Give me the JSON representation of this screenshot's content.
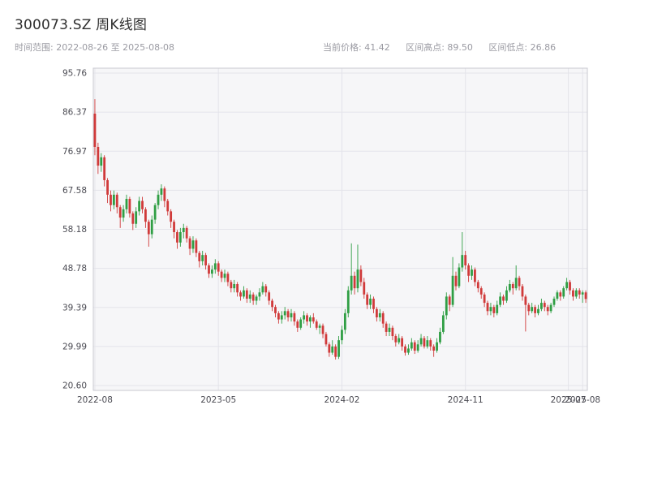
{
  "header": {
    "title": "300073.SZ 周K线图"
  },
  "subheader": {
    "range_label": "时间范围: 2022-08-26 至 2025-08-08",
    "stats": [
      "当前价格: 41.42",
      "区间高点: 89.50",
      "区间低点: 26.86"
    ]
  },
  "chart_data": {
    "type": "candlestick",
    "title": "300073.SZ 周K线图",
    "frequency": "weekly",
    "date_start": "2022-08-26",
    "date_end": "2025-08-08",
    "current_price": 41.42,
    "range_high": 89.5,
    "range_low": 26.86,
    "xlabel": "",
    "ylabel": "",
    "grid": true,
    "ylim": [
      20.6,
      95.76
    ],
    "y_ticks": [
      95.76,
      86.37,
      76.97,
      67.58,
      58.18,
      48.78,
      39.39,
      29.99,
      20.6
    ],
    "x_ticks": [
      {
        "label": "2022-08",
        "week": 0
      },
      {
        "label": "2023-05",
        "week": 39
      },
      {
        "label": "2024-02",
        "week": 78
      },
      {
        "label": "2024-11",
        "week": 117
      },
      {
        "label": "2025-07",
        "week": 149.5
      },
      {
        "label": "2025-08",
        "week": 154
      }
    ],
    "colors": {
      "up": "#2f9e44",
      "down": "#d03a3a",
      "plot_bg": "#f6f6f8",
      "grid": "#e4e4ea",
      "border": "#c9c9d0",
      "tick_text": "#4a4a52"
    },
    "candles": [
      [
        86.0,
        89.5,
        76.0,
        78.0
      ],
      [
        78.0,
        79.0,
        71.5,
        73.5
      ],
      [
        73.5,
        76.5,
        72.0,
        75.5
      ],
      [
        75.5,
        76.0,
        68.5,
        70.0
      ],
      [
        70.0,
        70.5,
        64.5,
        66.5
      ],
      [
        66.5,
        67.5,
        62.5,
        64.0
      ],
      [
        64.0,
        67.5,
        63.0,
        66.5
      ],
      [
        66.5,
        67.0,
        62.0,
        63.5
      ],
      [
        63.5,
        64.0,
        58.5,
        61.0
      ],
      [
        61.0,
        64.0,
        60.0,
        63.0
      ],
      [
        63.0,
        66.5,
        62.0,
        65.5
      ],
      [
        65.5,
        66.0,
        61.0,
        62.0
      ],
      [
        62.0,
        62.5,
        58.0,
        59.5
      ],
      [
        59.5,
        63.5,
        58.5,
        62.5
      ],
      [
        62.5,
        66.0,
        61.5,
        65.0
      ],
      [
        65.0,
        66.0,
        62.0,
        63.0
      ],
      [
        63.0,
        63.5,
        58.5,
        60.0
      ],
      [
        60.0,
        60.5,
        54.0,
        57.0
      ],
      [
        57.0,
        61.5,
        56.0,
        60.5
      ],
      [
        60.5,
        64.5,
        59.5,
        64.0
      ],
      [
        64.0,
        67.5,
        63.0,
        66.5
      ],
      [
        66.5,
        69.0,
        65.0,
        68.0
      ],
      [
        68.0,
        68.5,
        63.5,
        65.0
      ],
      [
        65.0,
        65.5,
        61.5,
        62.5
      ],
      [
        62.5,
        63.0,
        58.5,
        60.0
      ],
      [
        60.0,
        60.5,
        56.0,
        57.5
      ],
      [
        57.5,
        58.0,
        53.5,
        55.0
      ],
      [
        55.0,
        58.5,
        54.0,
        57.5
      ],
      [
        57.5,
        59.5,
        56.0,
        58.5
      ],
      [
        58.5,
        59.0,
        55.0,
        56.0
      ],
      [
        56.0,
        56.5,
        52.0,
        53.5
      ],
      [
        53.5,
        56.5,
        52.5,
        55.5
      ],
      [
        55.5,
        56.0,
        51.5,
        52.5
      ],
      [
        52.5,
        53.0,
        49.0,
        50.5
      ],
      [
        50.5,
        53.0,
        49.5,
        52.0
      ],
      [
        52.0,
        52.5,
        48.5,
        49.5
      ],
      [
        49.5,
        50.0,
        46.5,
        47.5
      ],
      [
        47.5,
        49.5,
        46.5,
        48.5
      ],
      [
        48.5,
        51.0,
        47.5,
        50.0
      ],
      [
        50.0,
        50.5,
        47.0,
        48.0
      ],
      [
        48.0,
        48.5,
        45.5,
        46.5
      ],
      [
        46.5,
        48.5,
        45.5,
        47.5
      ],
      [
        47.5,
        48.0,
        44.5,
        45.5
      ],
      [
        45.5,
        46.0,
        43.0,
        44.0
      ],
      [
        44.0,
        46.0,
        43.0,
        45.0
      ],
      [
        45.0,
        45.5,
        42.0,
        43.0
      ],
      [
        43.0,
        43.5,
        41.0,
        42.0
      ],
      [
        42.0,
        44.5,
        41.5,
        43.5
      ],
      [
        43.5,
        44.0,
        40.5,
        41.5
      ],
      [
        41.5,
        43.5,
        40.5,
        42.5
      ],
      [
        42.5,
        43.0,
        40.0,
        41.0
      ],
      [
        41.0,
        42.5,
        40.0,
        42.0
      ],
      [
        42.0,
        44.0,
        41.0,
        43.0
      ],
      [
        43.0,
        45.5,
        42.5,
        44.5
      ],
      [
        44.5,
        45.0,
        42.0,
        43.0
      ],
      [
        43.0,
        43.5,
        40.0,
        41.0
      ],
      [
        41.0,
        41.5,
        38.5,
        39.5
      ],
      [
        39.5,
        40.0,
        37.0,
        38.0
      ],
      [
        38.0,
        38.5,
        35.5,
        36.5
      ],
      [
        36.5,
        38.5,
        35.5,
        37.5
      ],
      [
        37.5,
        39.5,
        36.5,
        38.5
      ],
      [
        38.5,
        39.0,
        36.0,
        37.0
      ],
      [
        37.0,
        39.0,
        36.0,
        38.0
      ],
      [
        38.0,
        38.5,
        35.0,
        36.0
      ],
      [
        36.0,
        36.5,
        33.5,
        34.5
      ],
      [
        34.5,
        37.0,
        34.0,
        36.5
      ],
      [
        36.5,
        38.5,
        35.5,
        37.5
      ],
      [
        37.5,
        38.0,
        35.0,
        36.0
      ],
      [
        36.0,
        37.5,
        34.5,
        37.0
      ],
      [
        37.0,
        38.0,
        35.5,
        36.0
      ],
      [
        36.0,
        36.5,
        34.0,
        34.5
      ],
      [
        34.5,
        35.5,
        33.0,
        35.0
      ],
      [
        35.0,
        35.5,
        32.0,
        33.0
      ],
      [
        33.0,
        33.5,
        30.0,
        30.5
      ],
      [
        30.5,
        31.0,
        27.5,
        28.5
      ],
      [
        28.5,
        31.5,
        28.0,
        30.0
      ],
      [
        30.0,
        30.5,
        26.86,
        27.5
      ],
      [
        27.5,
        32.5,
        27.0,
        31.5
      ],
      [
        31.5,
        35.0,
        30.5,
        34.0
      ],
      [
        34.0,
        39.0,
        33.0,
        38.0
      ],
      [
        38.0,
        44.5,
        37.0,
        43.5
      ],
      [
        43.5,
        54.8,
        42.5,
        47.0
      ],
      [
        47.0,
        48.0,
        42.5,
        44.0
      ],
      [
        44.0,
        54.5,
        43.0,
        48.5
      ],
      [
        48.5,
        49.5,
        44.5,
        45.5
      ],
      [
        45.5,
        46.5,
        41.5,
        42.5
      ],
      [
        42.5,
        43.0,
        39.0,
        40.0
      ],
      [
        40.0,
        42.5,
        39.0,
        41.5
      ],
      [
        41.5,
        42.0,
        38.0,
        39.0
      ],
      [
        39.0,
        39.5,
        36.0,
        37.0
      ],
      [
        37.0,
        39.0,
        36.0,
        38.0
      ],
      [
        38.0,
        38.5,
        34.5,
        35.5
      ],
      [
        35.5,
        36.0,
        32.5,
        33.5
      ],
      [
        33.5,
        35.5,
        32.5,
        34.5
      ],
      [
        34.5,
        35.0,
        31.5,
        32.5
      ],
      [
        32.5,
        33.0,
        30.0,
        31.0
      ],
      [
        31.0,
        33.0,
        30.5,
        32.0
      ],
      [
        32.0,
        32.5,
        29.0,
        30.0
      ],
      [
        30.0,
        30.5,
        27.8,
        28.5
      ],
      [
        28.5,
        30.5,
        28.0,
        29.5
      ],
      [
        29.5,
        32.0,
        29.0,
        31.0
      ],
      [
        31.0,
        31.5,
        28.2,
        29.0
      ],
      [
        29.0,
        31.5,
        28.5,
        30.5
      ],
      [
        30.5,
        33.0,
        30.0,
        32.0
      ],
      [
        32.0,
        32.5,
        29.5,
        30.0
      ],
      [
        30.0,
        32.5,
        29.5,
        31.5
      ],
      [
        31.5,
        32.0,
        29.0,
        30.0
      ],
      [
        30.0,
        30.5,
        27.5,
        29.0
      ],
      [
        29.0,
        32.0,
        28.5,
        31.0
      ],
      [
        31.0,
        34.5,
        30.5,
        33.5
      ],
      [
        33.5,
        38.5,
        33.0,
        37.5
      ],
      [
        37.5,
        43.0,
        36.5,
        42.0
      ],
      [
        42.0,
        42.5,
        38.5,
        40.0
      ],
      [
        40.0,
        51.5,
        39.5,
        47.0
      ],
      [
        47.0,
        48.0,
        43.5,
        44.5
      ],
      [
        44.5,
        50.0,
        44.0,
        49.0
      ],
      [
        49.0,
        57.5,
        48.0,
        52.0
      ],
      [
        52.0,
        53.0,
        48.5,
        49.5
      ],
      [
        49.5,
        50.0,
        45.5,
        47.0
      ],
      [
        47.0,
        49.5,
        46.0,
        48.5
      ],
      [
        48.5,
        49.0,
        44.5,
        45.5
      ],
      [
        45.5,
        46.0,
        43.0,
        44.0
      ],
      [
        44.0,
        44.5,
        41.5,
        42.5
      ],
      [
        42.5,
        43.0,
        39.5,
        40.5
      ],
      [
        40.5,
        41.0,
        37.5,
        38.5
      ],
      [
        38.5,
        40.5,
        37.5,
        39.5
      ],
      [
        39.5,
        40.0,
        37.0,
        38.0
      ],
      [
        38.0,
        41.0,
        37.5,
        40.0
      ],
      [
        40.0,
        43.0,
        39.5,
        42.0
      ],
      [
        42.0,
        42.5,
        40.0,
        41.0
      ],
      [
        41.0,
        44.5,
        40.5,
        43.5
      ],
      [
        43.5,
        46.0,
        43.0,
        45.0
      ],
      [
        45.0,
        45.5,
        42.5,
        44.0
      ],
      [
        44.0,
        49.5,
        43.5,
        46.5
      ],
      [
        46.5,
        47.0,
        43.5,
        44.5
      ],
      [
        44.5,
        45.0,
        41.0,
        42.0
      ],
      [
        42.0,
        42.5,
        33.6,
        40.0
      ],
      [
        40.0,
        40.5,
        37.5,
        38.5
      ],
      [
        38.5,
        40.5,
        38.0,
        39.5
      ],
      [
        39.5,
        40.0,
        37.0,
        38.0
      ],
      [
        38.0,
        40.0,
        37.5,
        39.0
      ],
      [
        39.0,
        41.5,
        38.5,
        40.5
      ],
      [
        40.5,
        41.0,
        38.5,
        39.5
      ],
      [
        39.5,
        40.0,
        37.5,
        38.5
      ],
      [
        38.5,
        40.5,
        38.0,
        40.0
      ],
      [
        40.0,
        42.0,
        39.5,
        41.5
      ],
      [
        41.5,
        43.5,
        41.0,
        43.0
      ],
      [
        43.0,
        43.5,
        41.0,
        42.0
      ],
      [
        42.0,
        44.5,
        41.5,
        44.0
      ],
      [
        44.0,
        46.5,
        43.5,
        45.5
      ],
      [
        45.5,
        46.0,
        42.5,
        43.5
      ],
      [
        43.5,
        44.0,
        41.0,
        42.0
      ],
      [
        42.0,
        44.0,
        41.5,
        43.5
      ],
      [
        43.5,
        44.0,
        41.5,
        42.5
      ],
      [
        42.5,
        43.5,
        40.5,
        43.0
      ],
      [
        43.0,
        43.5,
        40.5,
        41.42
      ]
    ]
  }
}
